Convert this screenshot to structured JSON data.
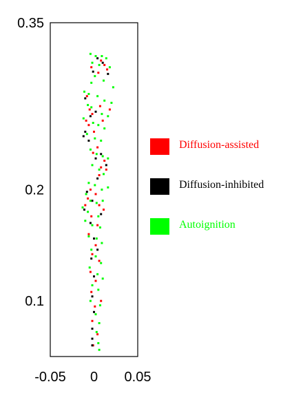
{
  "chart_data": {
    "type": "scatter",
    "title": "",
    "xlabel": "",
    "ylabel": "",
    "xlim": [
      -0.05,
      0.05
    ],
    "ylim": [
      0.05,
      0.35
    ],
    "x_ticks": [
      "-0.05",
      "0",
      "0.05"
    ],
    "y_ticks": [
      {
        "value": 0.35,
        "label": "0.35"
      },
      {
        "value": 0.2,
        "label": "0.2"
      },
      {
        "value": 0.1,
        "label": "0.1"
      }
    ],
    "grid": false,
    "legend_position": "right",
    "legend": [
      {
        "name": "Diffusion-assisted",
        "color": "#ff0000"
      },
      {
        "name": "Diffusion-inhibited",
        "color": "#000000"
      },
      {
        "name": "Autoignition",
        "color": "#00ff00"
      }
    ],
    "series": [
      {
        "name": "Diffusion-assisted",
        "color": "#ff0000",
        "points": [
          [
            0.008,
            0.316
          ],
          [
            0.012,
            0.312
          ],
          [
            0.015,
            0.308
          ],
          [
            -0.003,
            0.31
          ],
          [
            0.005,
            0.305
          ],
          [
            -0.008,
            0.284
          ],
          [
            -0.005,
            0.272
          ],
          [
            -0.002,
            0.268
          ],
          [
            0.007,
            0.275
          ],
          [
            0.018,
            0.272
          ],
          [
            -0.009,
            0.262
          ],
          [
            -0.006,
            0.258
          ],
          [
            0.0,
            0.252
          ],
          [
            0.01,
            0.262
          ],
          [
            0.004,
            0.238
          ],
          [
            -0.001,
            0.233
          ],
          [
            0.012,
            0.226
          ],
          [
            0.008,
            0.22
          ],
          [
            0.014,
            0.218
          ],
          [
            0.006,
            0.213
          ],
          [
            -0.004,
            0.2
          ],
          [
            0.002,
            0.196
          ],
          [
            -0.007,
            0.192
          ],
          [
            -0.01,
            0.186
          ],
          [
            0.006,
            0.186
          ],
          [
            0.011,
            0.182
          ],
          [
            -0.003,
            0.176
          ],
          [
            0.004,
            0.168
          ],
          [
            -0.006,
            0.16
          ],
          [
            0.002,
            0.15
          ],
          [
            -0.002,
            0.142
          ],
          [
            0.006,
            0.136
          ],
          [
            -0.004,
            0.126
          ],
          [
            0.002,
            0.118
          ],
          [
            -0.003,
            0.108
          ],
          [
            0.008,
            0.1
          ],
          [
            0.001,
            0.095
          ],
          [
            -0.002,
            0.082
          ],
          [
            0.004,
            0.07
          ],
          [
            -0.001,
            0.06
          ]
        ]
      },
      {
        "name": "Diffusion-inhibited",
        "color": "#000000",
        "points": [
          [
            0.004,
            0.318
          ],
          [
            0.01,
            0.314
          ],
          [
            -0.001,
            0.306
          ],
          [
            0.016,
            0.304
          ],
          [
            -0.01,
            0.282
          ],
          [
            -0.004,
            0.266
          ],
          [
            0.002,
            0.27
          ],
          [
            -0.01,
            0.252
          ],
          [
            -0.012,
            0.248
          ],
          [
            -0.006,
            0.244
          ],
          [
            0.008,
            0.232
          ],
          [
            0.002,
            0.228
          ],
          [
            0.014,
            0.222
          ],
          [
            0.004,
            0.21
          ],
          [
            -0.008,
            0.198
          ],
          [
            -0.002,
            0.19
          ],
          [
            -0.011,
            0.182
          ],
          [
            0.008,
            0.178
          ],
          [
            -0.004,
            0.17
          ],
          [
            0.0,
            0.156
          ],
          [
            0.004,
            0.146
          ],
          [
            -0.003,
            0.138
          ],
          [
            0.0,
            0.122
          ],
          [
            -0.002,
            0.104
          ],
          [
            0.0,
            0.09
          ],
          [
            -0.002,
            0.075
          ],
          [
            -0.002,
            0.066
          ],
          [
            -0.002,
            0.06
          ]
        ]
      },
      {
        "name": "Autoignition",
        "color": "#00ff00",
        "points": [
          [
            -0.004,
            0.322
          ],
          [
            0.002,
            0.32
          ],
          [
            0.009,
            0.32
          ],
          [
            0.014,
            0.318
          ],
          [
            -0.002,
            0.314
          ],
          [
            0.006,
            0.312
          ],
          [
            0.018,
            0.31
          ],
          [
            0.001,
            0.302
          ],
          [
            0.011,
            0.298
          ],
          [
            -0.003,
            0.296
          ],
          [
            0.022,
            0.292
          ],
          [
            -0.011,
            0.288
          ],
          [
            -0.006,
            0.286
          ],
          [
            0.004,
            0.284
          ],
          [
            0.012,
            0.28
          ],
          [
            -0.007,
            0.276
          ],
          [
            0.02,
            0.278
          ],
          [
            -0.003,
            0.274
          ],
          [
            0.009,
            0.268
          ],
          [
            0.016,
            0.266
          ],
          [
            -0.012,
            0.264
          ],
          [
            -0.001,
            0.26
          ],
          [
            0.005,
            0.258
          ],
          [
            0.012,
            0.255
          ],
          [
            -0.008,
            0.25
          ],
          [
            0.001,
            0.246
          ],
          [
            0.008,
            0.244
          ],
          [
            -0.004,
            0.236
          ],
          [
            0.003,
            0.232
          ],
          [
            0.01,
            0.23
          ],
          [
            0.016,
            0.228
          ],
          [
            -0.002,
            0.222
          ],
          [
            0.006,
            0.218
          ],
          [
            0.011,
            0.214
          ],
          [
            -0.006,
            0.206
          ],
          [
            0.001,
            0.204
          ],
          [
            0.009,
            0.2
          ],
          [
            0.016,
            0.202
          ],
          [
            -0.009,
            0.196
          ],
          [
            -0.004,
            0.19
          ],
          [
            0.003,
            0.188
          ],
          [
            -0.013,
            0.184
          ],
          [
            -0.007,
            0.18
          ],
          [
            0.01,
            0.19
          ],
          [
            0.005,
            0.176
          ],
          [
            -0.01,
            0.172
          ],
          [
            -0.002,
            0.168
          ],
          [
            0.007,
            0.166
          ],
          [
            -0.006,
            0.158
          ],
          [
            0.003,
            0.156
          ],
          [
            0.009,
            0.152
          ],
          [
            -0.003,
            0.146
          ],
          [
            0.002,
            0.14
          ],
          [
            0.008,
            0.134
          ],
          [
            -0.005,
            0.13
          ],
          [
            0.004,
            0.124
          ],
          [
            0.01,
            0.12
          ],
          [
            -0.002,
            0.114
          ],
          [
            0.005,
            0.11
          ],
          [
            -0.004,
            0.1
          ],
          [
            0.007,
            0.096
          ],
          [
            0.002,
            0.088
          ],
          [
            0.006,
            0.08
          ],
          [
            0.003,
            0.072
          ],
          [
            0.005,
            0.062
          ],
          [
            0.006,
            0.056
          ]
        ]
      }
    ]
  }
}
